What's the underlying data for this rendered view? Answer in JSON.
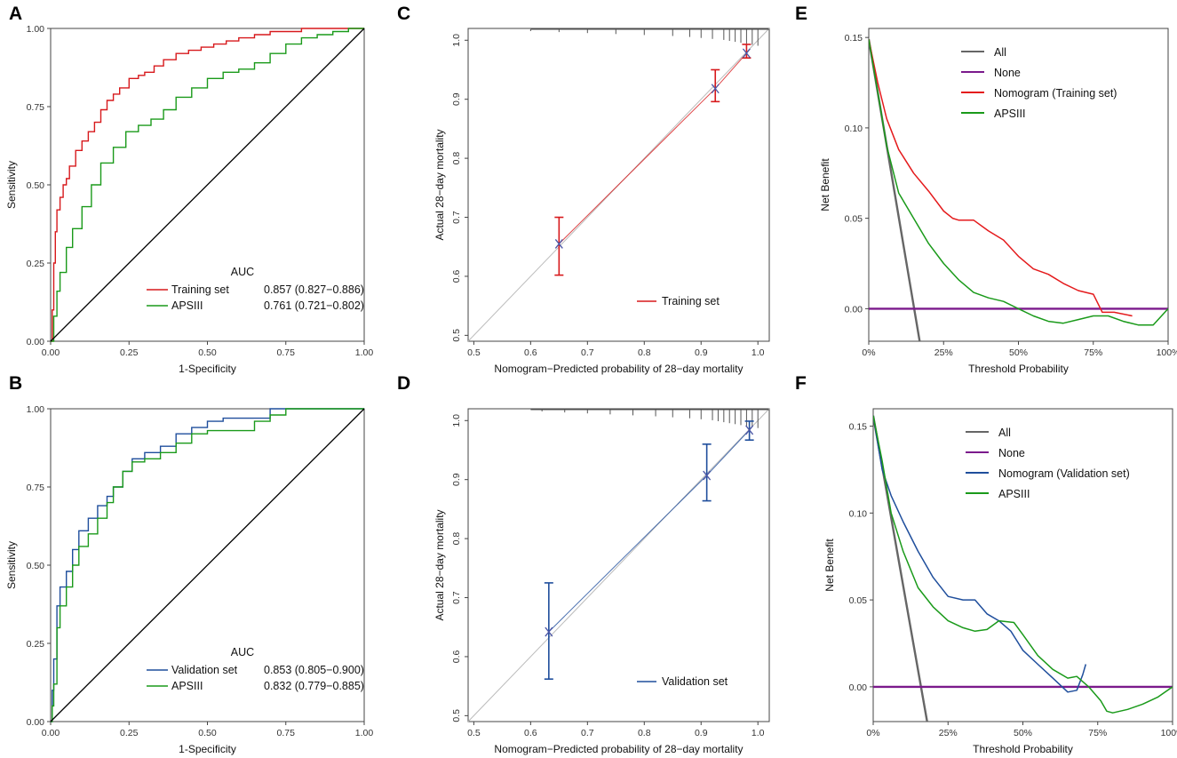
{
  "figure": {
    "panels": [
      "A",
      "B",
      "C",
      "D",
      "E",
      "F"
    ]
  },
  "chart_data": [
    {
      "panel": "A",
      "type": "line",
      "subtype": "roc",
      "xlabel": "1-Specificity",
      "ylabel": "Sensitivity",
      "xlim": [
        0,
        1
      ],
      "ylim": [
        0,
        1
      ],
      "x_ticks": [
        "0.00",
        "0.25",
        "0.50",
        "0.75",
        "1.00"
      ],
      "y_ticks": [
        "0.00",
        "0.25",
        "0.50",
        "0.75",
        "1.00"
      ],
      "legend_title": "AUC",
      "legend_position": "bottom-right",
      "series": [
        {
          "name": "Training set",
          "auc": "0.857 (0.827−0.886)",
          "color": "#d7191c",
          "x": [
            0,
            0.005,
            0.01,
            0.015,
            0.02,
            0.03,
            0.04,
            0.05,
            0.06,
            0.08,
            0.1,
            0.12,
            0.14,
            0.16,
            0.18,
            0.2,
            0.22,
            0.25,
            0.28,
            0.3,
            0.33,
            0.36,
            0.4,
            0.44,
            0.48,
            0.52,
            0.56,
            0.6,
            0.65,
            0.7,
            0.75,
            0.8,
            0.85,
            0.9,
            0.95,
            1
          ],
          "y": [
            0,
            0.1,
            0.25,
            0.35,
            0.42,
            0.46,
            0.5,
            0.52,
            0.56,
            0.61,
            0.64,
            0.67,
            0.7,
            0.74,
            0.77,
            0.79,
            0.81,
            0.84,
            0.85,
            0.86,
            0.88,
            0.9,
            0.92,
            0.93,
            0.94,
            0.95,
            0.96,
            0.97,
            0.98,
            0.99,
            0.99,
            1,
            1,
            1,
            1,
            1
          ]
        },
        {
          "name": "APSIII",
          "auc": "0.761 (0.721−0.802)",
          "color": "#1a9a1a",
          "x": [
            0,
            0.01,
            0.02,
            0.03,
            0.05,
            0.07,
            0.1,
            0.13,
            0.16,
            0.2,
            0.24,
            0.28,
            0.32,
            0.36,
            0.4,
            0.45,
            0.5,
            0.55,
            0.6,
            0.65,
            0.7,
            0.75,
            0.8,
            0.85,
            0.9,
            0.95,
            1
          ],
          "y": [
            0,
            0.08,
            0.16,
            0.22,
            0.3,
            0.36,
            0.43,
            0.5,
            0.57,
            0.62,
            0.67,
            0.69,
            0.71,
            0.74,
            0.78,
            0.81,
            0.84,
            0.86,
            0.87,
            0.89,
            0.92,
            0.95,
            0.97,
            0.98,
            0.99,
            1,
            1
          ]
        },
        {
          "name": "reference",
          "color": "#000000",
          "x": [
            0,
            1
          ],
          "y": [
            0,
            1
          ]
        }
      ]
    },
    {
      "panel": "B",
      "type": "line",
      "subtype": "roc",
      "xlabel": "1-Specificity",
      "ylabel": "Sensitivity",
      "xlim": [
        0,
        1
      ],
      "ylim": [
        0,
        1
      ],
      "x_ticks": [
        "0.00",
        "0.25",
        "0.50",
        "0.75",
        "1.00"
      ],
      "y_ticks": [
        "0.00",
        "0.25",
        "0.50",
        "0.75",
        "1.00"
      ],
      "legend_title": "AUC",
      "legend_position": "bottom-right",
      "series": [
        {
          "name": "Validation set",
          "auc": "0.853 (0.805−0.900)",
          "color": "#1f4e9c",
          "x": [
            0,
            0.005,
            0.01,
            0.02,
            0.03,
            0.05,
            0.07,
            0.09,
            0.12,
            0.15,
            0.18,
            0.2,
            0.23,
            0.26,
            0.3,
            0.35,
            0.4,
            0.45,
            0.5,
            0.55,
            0.6,
            0.7,
            0.75,
            0.8,
            0.9,
            1
          ],
          "y": [
            0,
            0.1,
            0.2,
            0.37,
            0.43,
            0.48,
            0.55,
            0.61,
            0.65,
            0.69,
            0.72,
            0.75,
            0.8,
            0.84,
            0.86,
            0.88,
            0.92,
            0.94,
            0.96,
            0.97,
            0.97,
            1,
            1,
            1,
            1,
            1
          ]
        },
        {
          "name": "APSIII",
          "auc": "0.832 (0.779−0.885)",
          "color": "#1a9a1a",
          "x": [
            0,
            0.005,
            0.01,
            0.02,
            0.03,
            0.05,
            0.07,
            0.09,
            0.12,
            0.15,
            0.18,
            0.2,
            0.23,
            0.26,
            0.3,
            0.35,
            0.4,
            0.45,
            0.5,
            0.55,
            0.6,
            0.65,
            0.7,
            0.75,
            0.8,
            0.9,
            1
          ],
          "y": [
            0,
            0.05,
            0.12,
            0.3,
            0.37,
            0.43,
            0.5,
            0.56,
            0.6,
            0.65,
            0.7,
            0.75,
            0.8,
            0.83,
            0.84,
            0.86,
            0.89,
            0.92,
            0.93,
            0.93,
            0.93,
            0.96,
            0.98,
            1,
            1,
            1,
            1
          ]
        },
        {
          "name": "reference",
          "color": "#000000",
          "x": [
            0,
            1
          ],
          "y": [
            0,
            1
          ]
        }
      ]
    },
    {
      "panel": "C",
      "type": "scatter",
      "subtype": "calibration",
      "xlabel": "Nomogram−Predicted probability of 28−day mortality",
      "ylabel": "Actual 28−day mortality",
      "xlim": [
        0.49,
        1.02
      ],
      "ylim": [
        0.49,
        1.02
      ],
      "x_ticks": [
        "0.5",
        "0.6",
        "0.7",
        "0.8",
        "0.9",
        "1.0"
      ],
      "y_ticks": [
        "0.5",
        "0.6",
        "0.7",
        "0.8",
        "0.9",
        "1.0"
      ],
      "legend": [
        {
          "name": "Training set",
          "color": "#d7191c"
        }
      ],
      "legend_position": "bottom-right",
      "points": [
        {
          "x": 0.65,
          "y": 0.655,
          "lo": 0.602,
          "hi": 0.7
        },
        {
          "x": 0.925,
          "y": 0.918,
          "lo": 0.896,
          "hi": 0.95
        },
        {
          "x": 0.98,
          "y": 0.978,
          "lo": 0.97,
          "hi": 0.993
        }
      ],
      "rug": [
        0.6,
        0.65,
        0.7,
        0.75,
        0.8,
        0.85,
        0.88,
        0.9,
        0.92,
        0.94,
        0.95,
        0.96,
        0.97,
        0.98,
        0.99,
        1.0
      ]
    },
    {
      "panel": "D",
      "type": "scatter",
      "subtype": "calibration",
      "xlabel": "Nomogram−Predicted probability of 28−day mortality",
      "ylabel": "Actual 28−day mortality",
      "xlim": [
        0.49,
        1.02
      ],
      "ylim": [
        0.49,
        1.02
      ],
      "x_ticks": [
        "0.5",
        "0.6",
        "0.7",
        "0.8",
        "0.9",
        "1.0"
      ],
      "y_ticks": [
        "0.5",
        "0.6",
        "0.7",
        "0.8",
        "0.9",
        "1.0"
      ],
      "legend": [
        {
          "name": "Validation set",
          "color": "#1f4e9c"
        }
      ],
      "legend_position": "bottom-right",
      "points": [
        {
          "x": 0.632,
          "y": 0.642,
          "lo": 0.562,
          "hi": 0.725
        },
        {
          "x": 0.91,
          "y": 0.907,
          "lo": 0.864,
          "hi": 0.96
        },
        {
          "x": 0.985,
          "y": 0.984,
          "lo": 0.967,
          "hi": 0.999
        }
      ],
      "rug": [
        0.62,
        0.66,
        0.7,
        0.74,
        0.78,
        0.82,
        0.85,
        0.88,
        0.9,
        0.92,
        0.93,
        0.94,
        0.95,
        0.96,
        0.97,
        0.98,
        0.99,
        1.0
      ]
    },
    {
      "panel": "E",
      "type": "line",
      "subtype": "decision_curve",
      "xlabel": "Threshold Probability",
      "ylabel": "Net Benefit",
      "xlim": [
        0,
        1
      ],
      "ylim": [
        -0.018,
        0.155
      ],
      "x_ticks": [
        "0%",
        "25%",
        "50%",
        "75%",
        "100%"
      ],
      "y_ticks": [
        "0.00",
        "0.05",
        "0.10",
        "0.15"
      ],
      "legend_position": "top-right",
      "series": [
        {
          "name": "All",
          "color": "#666666",
          "x": [
            0,
            0.17
          ],
          "y": [
            0.149,
            -0.018
          ]
        },
        {
          "name": "None",
          "color": "#7b1a8c",
          "x": [
            0,
            1
          ],
          "y": [
            0,
            0
          ]
        },
        {
          "name": "Nomogram (Training set)",
          "color": "#e41a1c",
          "x": [
            0,
            0.03,
            0.06,
            0.1,
            0.15,
            0.2,
            0.25,
            0.28,
            0.3,
            0.35,
            0.4,
            0.45,
            0.5,
            0.55,
            0.6,
            0.65,
            0.7,
            0.75,
            0.78,
            0.82,
            0.88
          ],
          "y": [
            0.149,
            0.125,
            0.105,
            0.088,
            0.075,
            0.065,
            0.054,
            0.05,
            0.049,
            0.049,
            0.043,
            0.038,
            0.029,
            0.022,
            0.019,
            0.014,
            0.01,
            0.008,
            -0.002,
            -0.002,
            -0.004
          ]
        },
        {
          "name": "APSIII",
          "color": "#1a9a1a",
          "x": [
            0,
            0.03,
            0.06,
            0.1,
            0.15,
            0.2,
            0.25,
            0.3,
            0.35,
            0.4,
            0.45,
            0.5,
            0.55,
            0.6,
            0.65,
            0.7,
            0.75,
            0.8,
            0.85,
            0.9,
            0.95,
            1
          ],
          "y": [
            0.149,
            0.12,
            0.09,
            0.064,
            0.05,
            0.036,
            0.025,
            0.016,
            0.009,
            0.006,
            0.004,
            0.0,
            -0.004,
            -0.007,
            -0.008,
            -0.006,
            -0.004,
            -0.004,
            -0.007,
            -0.009,
            -0.009,
            0.0
          ]
        }
      ]
    },
    {
      "panel": "F",
      "type": "line",
      "subtype": "decision_curve",
      "xlabel": "Threshold Probability",
      "ylabel": "Net Benefit",
      "xlim": [
        0,
        1
      ],
      "ylim": [
        -0.02,
        0.16
      ],
      "x_ticks": [
        "0%",
        "25%",
        "50%",
        "75%",
        "100%"
      ],
      "y_ticks": [
        "0.00",
        "0.05",
        "0.10",
        "0.15"
      ],
      "legend_position": "top-right",
      "series": [
        {
          "name": "All",
          "color": "#666666",
          "x": [
            0,
            0.18
          ],
          "y": [
            0.156,
            -0.02
          ]
        },
        {
          "name": "None",
          "color": "#7b1a8c",
          "x": [
            0,
            1
          ],
          "y": [
            0,
            0
          ]
        },
        {
          "name": "Nomogram (Validation set)",
          "color": "#1f4e9c",
          "x": [
            0,
            0.03,
            0.06,
            0.1,
            0.15,
            0.2,
            0.25,
            0.3,
            0.34,
            0.38,
            0.42,
            0.46,
            0.5,
            0.55,
            0.6,
            0.65,
            0.68,
            0.7,
            0.71
          ],
          "y": [
            0.156,
            0.125,
            0.11,
            0.095,
            0.078,
            0.063,
            0.052,
            0.05,
            0.05,
            0.042,
            0.038,
            0.032,
            0.021,
            0.013,
            0.005,
            -0.003,
            -0.002,
            0.007,
            0.013
          ]
        },
        {
          "name": "APSIII",
          "color": "#1a9a1a",
          "x": [
            0,
            0.03,
            0.06,
            0.1,
            0.15,
            0.2,
            0.25,
            0.3,
            0.34,
            0.38,
            0.42,
            0.47,
            0.5,
            0.55,
            0.6,
            0.65,
            0.68,
            0.72,
            0.76,
            0.78,
            0.8,
            0.85,
            0.9,
            0.95,
            1
          ],
          "y": [
            0.156,
            0.13,
            0.1,
            0.078,
            0.057,
            0.046,
            0.038,
            0.034,
            0.032,
            0.033,
            0.038,
            0.037,
            0.03,
            0.018,
            0.01,
            0.005,
            0.006,
            0.0,
            -0.008,
            -0.014,
            -0.015,
            -0.013,
            -0.01,
            -0.006,
            0.0
          ]
        }
      ]
    }
  ]
}
